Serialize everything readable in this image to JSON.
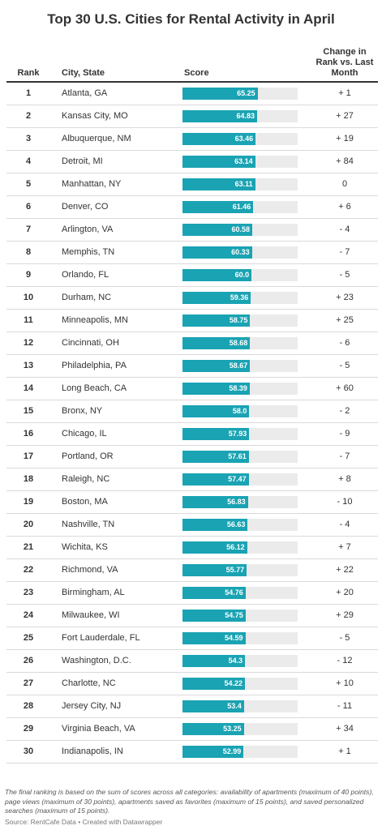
{
  "title": "Top 30 U.S. Cities for Rental Activity in April",
  "headers": {
    "rank": "Rank",
    "city": "City, State",
    "score": "Score",
    "change_lines": [
      "Change in",
      "Rank vs. Last",
      "Month"
    ]
  },
  "chart_data": {
    "type": "table",
    "title": "Top 30 U.S. Cities for Rental Activity in April",
    "columns": [
      "Rank",
      "City, State",
      "Score",
      "Change in Rank vs. Last Month"
    ],
    "score_range": [
      0,
      100
    ],
    "bar_color": "#1aa3b3",
    "track_color": "#ebebeb",
    "rows": [
      {
        "rank": "1",
        "city": "Atlanta, GA",
        "score": 65.25,
        "score_label": "65.25",
        "change": "+ 1"
      },
      {
        "rank": "2",
        "city": "Kansas City, MO",
        "score": 64.83,
        "score_label": "64.83",
        "change": "+ 27"
      },
      {
        "rank": "3",
        "city": "Albuquerque, NM",
        "score": 63.46,
        "score_label": "63.46",
        "change": "+ 19"
      },
      {
        "rank": "4",
        "city": "Detroit, MI",
        "score": 63.14,
        "score_label": "63.14",
        "change": "+ 84"
      },
      {
        "rank": "5",
        "city": "Manhattan, NY",
        "score": 63.11,
        "score_label": "63.11",
        "change": "0"
      },
      {
        "rank": "6",
        "city": "Denver, CO",
        "score": 61.46,
        "score_label": "61.46",
        "change": "+ 6"
      },
      {
        "rank": "7",
        "city": "Arlington, VA",
        "score": 60.58,
        "score_label": "60.58",
        "change": "- 4"
      },
      {
        "rank": "8",
        "city": "Memphis, TN",
        "score": 60.33,
        "score_label": "60.33",
        "change": "- 7"
      },
      {
        "rank": "9",
        "city": "Orlando, FL",
        "score": 60.0,
        "score_label": "60.0",
        "change": "- 5"
      },
      {
        "rank": "10",
        "city": "Durham, NC",
        "score": 59.36,
        "score_label": "59.36",
        "change": "+ 23"
      },
      {
        "rank": "11",
        "city": "Minneapolis, MN",
        "score": 58.75,
        "score_label": "58.75",
        "change": "+ 25"
      },
      {
        "rank": "12",
        "city": "Cincinnati, OH",
        "score": 58.68,
        "score_label": "58.68",
        "change": "- 6"
      },
      {
        "rank": "13",
        "city": "Philadelphia, PA",
        "score": 58.67,
        "score_label": "58.67",
        "change": "- 5"
      },
      {
        "rank": "14",
        "city": "Long Beach, CA",
        "score": 58.39,
        "score_label": "58.39",
        "change": "+ 60"
      },
      {
        "rank": "15",
        "city": "Bronx, NY",
        "score": 58.0,
        "score_label": "58.0",
        "change": "- 2"
      },
      {
        "rank": "16",
        "city": "Chicago, IL",
        "score": 57.93,
        "score_label": "57.93",
        "change": "- 9"
      },
      {
        "rank": "17",
        "city": "Portland, OR",
        "score": 57.61,
        "score_label": "57.61",
        "change": "- 7"
      },
      {
        "rank": "18",
        "city": "Raleigh, NC",
        "score": 57.47,
        "score_label": "57.47",
        "change": "+ 8"
      },
      {
        "rank": "19",
        "city": "Boston, MA",
        "score": 56.83,
        "score_label": "56.83",
        "change": "- 10"
      },
      {
        "rank": "20",
        "city": "Nashville, TN",
        "score": 56.63,
        "score_label": "56.63",
        "change": "- 4"
      },
      {
        "rank": "21",
        "city": "Wichita, KS",
        "score": 56.12,
        "score_label": "56.12",
        "change": "+ 7"
      },
      {
        "rank": "22",
        "city": "Richmond, VA",
        "score": 55.77,
        "score_label": "55.77",
        "change": "+ 22"
      },
      {
        "rank": "23",
        "city": "Birmingham, AL",
        "score": 54.76,
        "score_label": "54.76",
        "change": "+ 20"
      },
      {
        "rank": "24",
        "city": "Milwaukee, WI",
        "score": 54.75,
        "score_label": "54.75",
        "change": "+ 29"
      },
      {
        "rank": "25",
        "city": "Fort Lauderdale, FL",
        "score": 54.59,
        "score_label": "54.59",
        "change": "- 5"
      },
      {
        "rank": "26",
        "city": "Washington, D.C.",
        "score": 54.3,
        "score_label": "54.3",
        "change": "- 12"
      },
      {
        "rank": "27",
        "city": "Charlotte, NC",
        "score": 54.22,
        "score_label": "54.22",
        "change": "+ 10"
      },
      {
        "rank": "28",
        "city": "Jersey City, NJ",
        "score": 53.4,
        "score_label": "53.4",
        "change": "- 11"
      },
      {
        "rank": "29",
        "city": "Virginia Beach, VA",
        "score": 53.25,
        "score_label": "53.25",
        "change": "+ 34"
      },
      {
        "rank": "30",
        "city": "Indianapolis, IN",
        "score": 52.99,
        "score_label": "52.99",
        "change": "+ 1"
      }
    ]
  },
  "footnote": "The final ranking is based on the sum of scores across all categories: availability of apartments (maximum of 40 points), page views (maximum of 30 points), apartments saved as favorites (maximum of 15 points), and saved personalized searches (maximum of 15 points).",
  "source": "Source: RentCafe Data • Created with Datawrapper"
}
